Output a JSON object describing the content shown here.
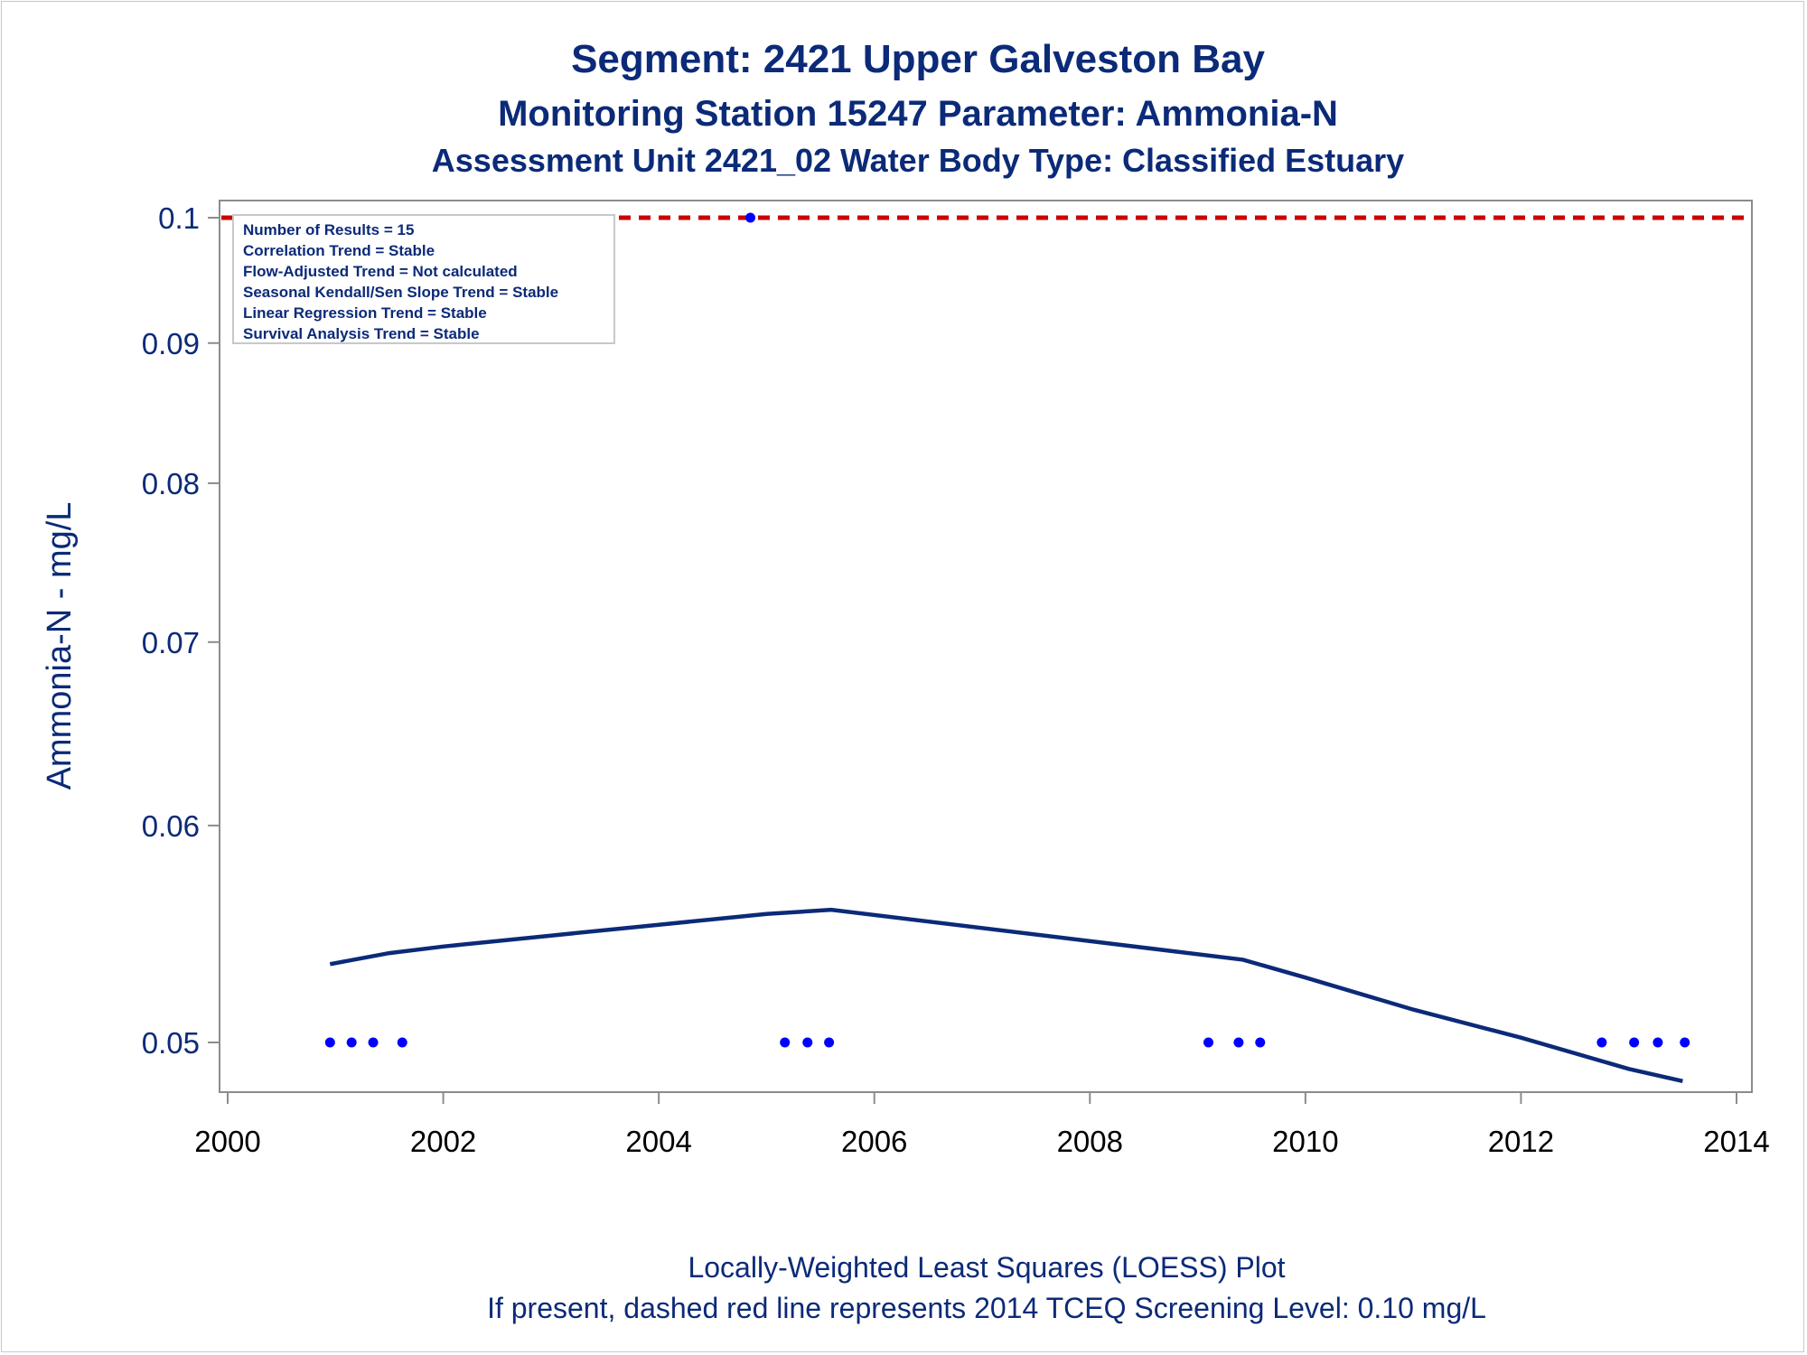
{
  "titles": {
    "line1": "Segment: 2421  Upper Galveston Bay",
    "line2": "Monitoring Station 15247 Parameter: Ammonia-N",
    "line3": "Assessment Unit 2421_02   Water Body Type: Classified Estuary"
  },
  "footnotes": {
    "line1": "Locally-Weighted Least Squares (LOESS) Plot",
    "line2": "If present, dashed red line represents 2014 TCEQ Screening Level: 0.10 mg/L"
  },
  "info_box": {
    "lines": [
      "Number of Results = 15",
      "Correlation Trend = Stable",
      "Flow-Adjusted Trend = Not calculated",
      "Seasonal Kendall/Sen Slope Trend = Stable",
      "Linear Regression Trend = Stable",
      "Survival Analysis Trend = Stable"
    ]
  },
  "colors": {
    "title": "#0b2a78",
    "points": "#0000ff",
    "loess": "#0b2a78",
    "screening": "#cc0000",
    "axis": "#8c8c8c"
  },
  "chart_data": {
    "type": "scatter",
    "ylabel": "Ammonia-N - mg/L",
    "xlabel": "",
    "y_scale": "log",
    "xlim": [
      2000,
      2014
    ],
    "ylim": [
      0.0485,
      0.1015
    ],
    "x_ticks": [
      "2000",
      "2002",
      "2004",
      "2006",
      "2008",
      "2010",
      "2012",
      "2014"
    ],
    "y_ticks": [
      "0.1",
      "0.09",
      "0.08",
      "0.07",
      "0.06",
      "0.05"
    ],
    "screening_level": 0.1,
    "series": [
      {
        "type": "scatter",
        "x": [
          2000.95,
          2001.15,
          2001.35,
          2001.62,
          2004.85,
          2005.17,
          2005.38,
          2005.58,
          2009.1,
          2009.38,
          2009.58,
          2012.75,
          2013.05,
          2013.27,
          2013.52
        ],
        "y": [
          0.05,
          0.05,
          0.05,
          0.05,
          0.1,
          0.05,
          0.05,
          0.05,
          0.05,
          0.05,
          0.05,
          0.05,
          0.05,
          0.05,
          0.05
        ]
      },
      {
        "type": "line",
        "x": [
          2000.95,
          2001.5,
          2002.0,
          2003.0,
          2004.0,
          2005.0,
          2005.6,
          2009.42,
          2010.0,
          2011.0,
          2012.0,
          2013.0,
          2013.5
        ],
        "y": [
          0.0534,
          0.0539,
          0.0542,
          0.0547,
          0.0552,
          0.0557,
          0.0559,
          0.0536,
          0.0528,
          0.0514,
          0.0502,
          0.0489,
          0.0484
        ]
      }
    ]
  }
}
